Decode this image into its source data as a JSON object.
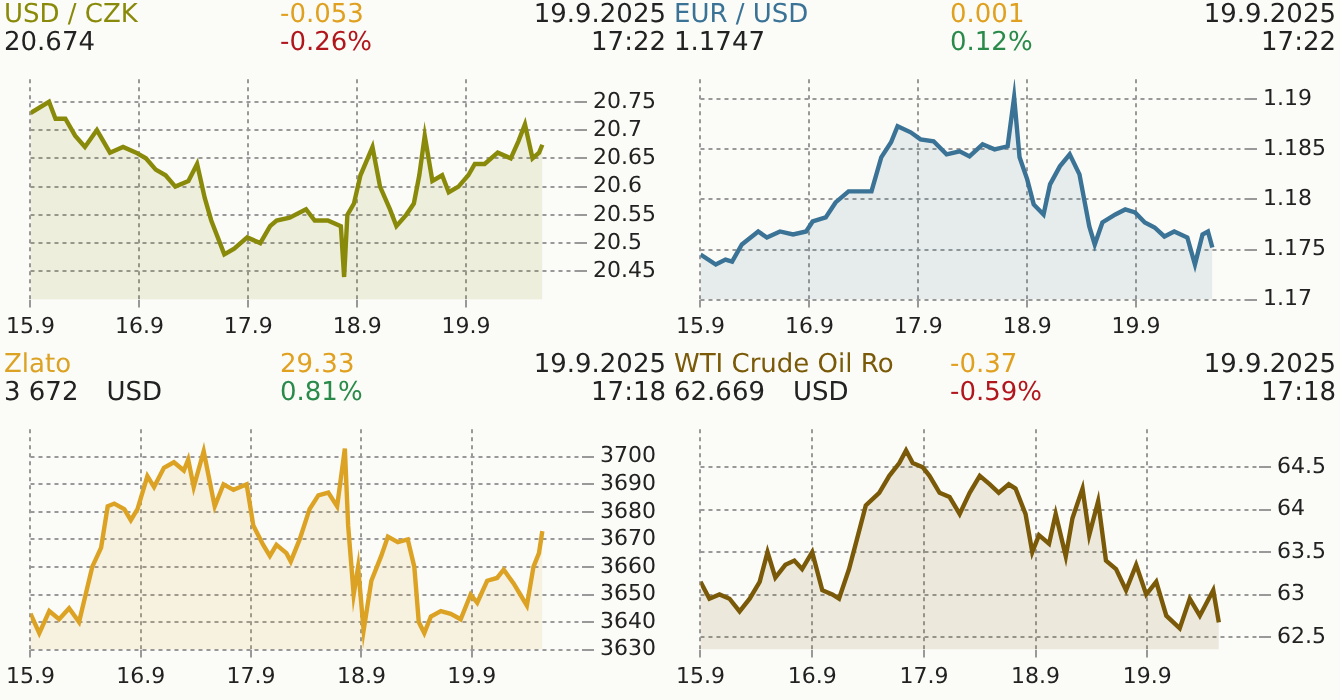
{
  "chart_data": [
    {
      "type": "area",
      "title": "USD / CZK",
      "subtitle": "20.674",
      "annotations": [
        "-0.053",
        "-0.26%",
        "19.9.2025",
        "17:22"
      ],
      "xlim": [
        "--09-15",
        "--09-20"
      ],
      "xticks": [
        {
          "value": "--09-15",
          "label": "15.9"
        },
        {
          "value": "--09-16",
          "label": "16.9"
        },
        {
          "value": "--09-17",
          "label": "17.9"
        },
        {
          "value": "--09-18",
          "label": "18.9"
        },
        {
          "value": "--09-19",
          "label": "19.9"
        }
      ],
      "ylim": [
        20.4,
        20.79
      ],
      "yticks": [
        20.45,
        20.5,
        20.55,
        20.6,
        20.65,
        20.7,
        20.75
      ],
      "grid": true,
      "series": [
        {
          "color": "#8a8a0a",
          "x": [
            "--09-15T00:00",
            "--09-15T04:05",
            "--09-15T05:31",
            "--09-15T07:41",
            "--09-15T09:50",
            "--09-15T12:00",
            "--09-15T14:38",
            "--09-15T17:31",
            "--09-15T20:24",
            "--09-15T23:17",
            "--09-16T01:26",
            "--09-16T03:36",
            "--09-16T05:46",
            "--09-16T07:55",
            "--09-16T10:48",
            "--09-16T12:43",
            "--09-16T14:24",
            "--09-16T15:50",
            "--09-16T18:43",
            "--09-16T20:53",
            "--09-16T23:46",
            "--09-17T02:38",
            "--09-17T04:48",
            "--09-17T06:14",
            "--09-17T09:07",
            "--09-17T12:43",
            "--09-17T14:38",
            "--09-17T17:31",
            "--09-17T20:24",
            "--09-17T21:07",
            "--09-17T21:50",
            "--09-17T23:17",
            "--09-18T00:43",
            "--09-18T03:22",
            "--09-18T05:02",
            "--09-18T07:12",
            "--09-18T08:38",
            "--09-18T10:48",
            "--09-18T12:29",
            "--09-18T13:41",
            "--09-18T14:53",
            "--09-18T16:34",
            "--09-18T18:43",
            "--09-18T20:10",
            "--09-18T22:19",
            "--09-19T00:29",
            "--09-19T01:55",
            "--09-19T04:05",
            "--09-19T06:58",
            "--09-19T09:50",
            "--09-19T11:31",
            "--09-19T12:58",
            "--09-19T14:38",
            "--09-19T16:05",
            "--09-19T16:48"
          ],
          "values": [
            20.73,
            20.75,
            20.72,
            20.72,
            20.69,
            20.67,
            20.7,
            20.66,
            20.67,
            20.66,
            20.65,
            20.63,
            20.62,
            20.6,
            20.61,
            20.64,
            20.58,
            20.54,
            20.48,
            20.49,
            20.51,
            20.5,
            20.53,
            20.54,
            20.545,
            20.56,
            20.54,
            20.54,
            20.53,
            20.44,
            20.55,
            20.57,
            20.62,
            20.67,
            20.6,
            20.56,
            20.53,
            20.55,
            20.57,
            20.62,
            20.69,
            20.61,
            20.62,
            20.59,
            20.6,
            20.62,
            20.64,
            20.64,
            20.66,
            20.65,
            20.68,
            20.71,
            20.65,
            20.66,
            20.674
          ]
        }
      ]
    },
    {
      "type": "area",
      "title": "EUR / USD",
      "subtitle": "1.1747",
      "annotations": [
        "0.001",
        "0.12%",
        "19.9.2025",
        "17:22"
      ],
      "xlim": [
        "--09-15",
        "--09-20"
      ],
      "xticks": [
        {
          "value": "--09-15",
          "label": "15.9"
        },
        {
          "value": "--09-16",
          "label": "16.9"
        },
        {
          "value": "--09-17",
          "label": "17.9"
        },
        {
          "value": "--09-18",
          "label": "18.9"
        },
        {
          "value": "--09-19",
          "label": "19.9"
        }
      ],
      "ylim": [
        1.17,
        1.192
      ],
      "yticks": [
        1.17,
        1.175,
        1.18,
        1.185,
        1.19
      ],
      "grid": true,
      "series": [
        {
          "color": "#3a7396",
          "x": [
            "--09-15T00:00",
            "--09-15T03:22",
            "--09-15T05:31",
            "--09-15T06:58",
            "--09-15T09:07",
            "--09-15T12:43",
            "--09-15T14:38",
            "--09-15T17:31",
            "--09-15T20:24",
            "--09-15T23:17",
            "--09-16T00:43",
            "--09-16T03:36",
            "--09-16T05:46",
            "--09-16T08:38",
            "--09-16T11:31",
            "--09-16T13:41",
            "--09-16T15:50",
            "--09-16T18:00",
            "--09-16T19:26",
            "--09-16T22:19",
            "--09-17T00:29",
            "--09-17T03:22",
            "--09-17T06:14",
            "--09-17T09:07",
            "--09-17T11:17",
            "--09-17T14:10",
            "--09-17T16:48",
            "--09-17T19:41",
            "--09-17T21:07",
            "--09-17T22:19",
            "--09-18T00:00",
            "--09-18T01:26",
            "--09-18T03:36",
            "--09-18T05:02",
            "--09-18T07:12",
            "--09-18T09:22",
            "--09-18T11:31",
            "--09-18T13:41",
            "--09-18T14:53",
            "--09-18T16:34",
            "--09-18T19:26",
            "--09-18T21:36",
            "--09-18T23:46",
            "--09-19T01:55",
            "--09-19T04:05",
            "--09-19T06:14",
            "--09-19T08:24",
            "--09-19T11:17",
            "--09-19T12:58",
            "--09-19T14:38",
            "--09-19T15:50",
            "--09-19T16:48"
          ],
          "values": [
            1.1745,
            1.1735,
            1.174,
            1.1738,
            1.1755,
            1.1768,
            1.1762,
            1.1768,
            1.1765,
            1.1768,
            1.1778,
            1.1782,
            1.1797,
            1.1808,
            1.1808,
            1.1808,
            1.1842,
            1.1857,
            1.1873,
            1.1867,
            1.186,
            1.1858,
            1.1845,
            1.1848,
            1.1843,
            1.1855,
            1.185,
            1.1853,
            1.1902,
            1.1842,
            1.182,
            1.1795,
            1.1785,
            1.1815,
            1.1833,
            1.1845,
            1.1825,
            1.1773,
            1.1755,
            1.1777,
            1.1785,
            1.179,
            1.1787,
            1.1777,
            1.1772,
            1.1763,
            1.1768,
            1.1762,
            1.1735,
            1.1765,
            1.1768,
            1.1752
          ]
        }
      ]
    },
    {
      "type": "area",
      "title": "Zlato",
      "subtitle": "3 672",
      "annotations": [
        "29.33",
        "0.81%",
        "19.9.2025",
        "17:18",
        "USD"
      ],
      "xlim": [
        "--09-15",
        "--09-20"
      ],
      "xticks": [
        {
          "value": "--09-15",
          "label": "15.9"
        },
        {
          "value": "--09-16",
          "label": "16.9"
        },
        {
          "value": "--09-17",
          "label": "17.9"
        },
        {
          "value": "--09-18",
          "label": "18.9"
        },
        {
          "value": "--09-19",
          "label": "19.9"
        }
      ],
      "ylim": [
        3630,
        3710
      ],
      "yticks": [
        3630,
        3640,
        3650,
        3660,
        3670,
        3680,
        3690,
        3700
      ],
      "grid": true,
      "series": [
        {
          "color": "#dca224",
          "x": [
            "--09-15T00:00",
            "--09-15T01:55",
            "--09-15T04:05",
            "--09-15T06:14",
            "--09-15T08:24",
            "--09-15T10:34",
            "--09-15T12:00",
            "--09-15T13:26",
            "--09-15T15:22",
            "--09-15T16:48",
            "--09-15T18:14",
            "--09-15T20:24",
            "--09-15T21:50",
            "--09-15T23:17",
            "--09-16T01:26",
            "--09-16T02:53",
            "--09-16T05:02",
            "--09-16T07:12",
            "--09-16T09:22",
            "--09-16T10:19",
            "--09-16T11:31",
            "--09-16T13:41",
            "--09-16T15:07",
            "--09-16T16:05",
            "--09-16T18:00",
            "--09-16T20:10",
            "--09-16T23:02",
            "--09-17T00:29",
            "--09-17T02:38",
            "--09-17T04:05",
            "--09-17T05:31",
            "--09-17T07:41",
            "--09-17T08:38",
            "--09-17T10:34",
            "--09-17T12:43",
            "--09-17T14:38",
            "--09-17T16:48",
            "--09-17T18:43",
            "--09-17T20:24",
            "--09-17T21:07",
            "--09-17T22:19",
            "--09-17T23:17",
            "--09-18T00:29",
            "--09-18T02:10",
            "--09-18T04:19",
            "--09-18T05:46",
            "--09-18T07:55",
            "--09-18T10:05",
            "--09-18T11:31",
            "--09-18T12:29",
            "--09-18T13:41",
            "--09-18T15:07",
            "--09-18T17:17",
            "--09-18T19:26",
            "--09-18T21:36",
            "--09-18T23:46",
            "--09-19T01:12",
            "--09-19T03:22",
            "--09-19T05:31",
            "--09-19T06:58",
            "--09-19T09:07",
            "--09-19T10:34",
            "--09-19T12:00",
            "--09-19T13:26",
            "--09-19T14:38",
            "--09-19T15:22"
          ],
          "values": [
            3643,
            3636,
            3644,
            3641,
            3645,
            3640,
            3650,
            3660,
            3667,
            3682,
            3683,
            3681,
            3677,
            3681,
            3693,
            3689,
            3696,
            3698,
            3695,
            3699,
            3689,
            3702,
            3690,
            3682,
            3690,
            3688,
            3690,
            3675,
            3668,
            3664,
            3668,
            3665,
            3662,
            3670,
            3681,
            3686,
            3687,
            3682,
            3703,
            3675,
            3650,
            3660,
            3637,
            3655,
            3664,
            3671,
            3669,
            3670,
            3660,
            3640,
            3636,
            3642,
            3644,
            3643,
            3641,
            3650,
            3647,
            3655,
            3656,
            3659,
            3654,
            3650,
            3646,
            3660,
            3665,
            3673
          ]
        }
      ]
    },
    {
      "type": "area",
      "title": "WTI Crude Oil Ro",
      "subtitle": "62.669",
      "annotations": [
        "-0.37",
        "-0.59%",
        "19.9.2025",
        "17:18",
        "USD"
      ],
      "xlim": [
        "--09-15",
        "--09-20"
      ],
      "xticks": [
        {
          "value": "--09-15",
          "label": "15.9"
        },
        {
          "value": "--09-16",
          "label": "16.9"
        },
        {
          "value": "--09-17",
          "label": "17.9"
        },
        {
          "value": "--09-18",
          "label": "18.9"
        },
        {
          "value": "--09-19",
          "label": "19.9"
        }
      ],
      "ylim": [
        62.35,
        64.95
      ],
      "yticks": [
        62.5,
        63,
        63.5,
        64,
        64.5
      ],
      "grid": true,
      "series": [
        {
          "color": "#7a5a08",
          "x": [
            "--09-15T00:00",
            "--09-15T01:55",
            "--09-15T04:05",
            "--09-15T06:14",
            "--09-15T08:24",
            "--09-15T10:34",
            "--09-15T12:43",
            "--09-15T14:24",
            "--09-15T16:05",
            "--09-15T18:14",
            "--09-15T20:10",
            "--09-15T21:50",
            "--09-16T00:00",
            "--09-16T02:10",
            "--09-16T04:19",
            "--09-16T05:46",
            "--09-16T07:55",
            "--09-16T09:22",
            "--09-16T11:31",
            "--09-16T14:24",
            "--09-16T16:34",
            "--09-16T18:43",
            "--09-16T20:10",
            "--09-16T21:36",
            "--09-16T23:46",
            "--09-17T01:12",
            "--09-17T03:22",
            "--09-17T05:31",
            "--09-17T07:41",
            "--09-17T09:50",
            "--09-17T12:00",
            "--09-17T14:10",
            "--09-17T16:05",
            "--09-17T18:14",
            "--09-17T19:41",
            "--09-17T21:50",
            "--09-17T23:17",
            "--09-18T00:43",
            "--09-18T02:53",
            "--09-18T04:19",
            "--09-18T06:29",
            "--09-18T07:55",
            "--09-18T10:05",
            "--09-18T11:31",
            "--09-18T13:26",
            "--09-18T15:07",
            "--09-18T17:17",
            "--09-18T19:26",
            "--09-18T21:36",
            "--09-18T23:46",
            "--09-19T01:55",
            "--09-19T04:05",
            "--09-19T06:58",
            "--09-19T09:07",
            "--09-19T11:17",
            "--09-19T14:10",
            "--09-19T15:22"
          ],
          "values": [
            63.15,
            62.95,
            63.0,
            62.95,
            62.8,
            62.95,
            63.15,
            63.5,
            63.2,
            63.35,
            63.4,
            63.3,
            63.5,
            63.05,
            63.0,
            62.95,
            63.3,
            63.6,
            64.05,
            64.2,
            64.4,
            64.55,
            64.7,
            64.55,
            64.5,
            64.4,
            64.2,
            64.15,
            63.95,
            64.2,
            64.4,
            64.3,
            64.2,
            64.3,
            64.25,
            63.95,
            63.5,
            63.7,
            63.6,
            63.95,
            63.45,
            63.9,
            64.25,
            63.7,
            64.1,
            63.4,
            63.3,
            63.05,
            63.35,
            63.0,
            63.15,
            62.75,
            62.6,
            62.95,
            62.75,
            63.05,
            62.67
          ]
        }
      ]
    }
  ]
}
